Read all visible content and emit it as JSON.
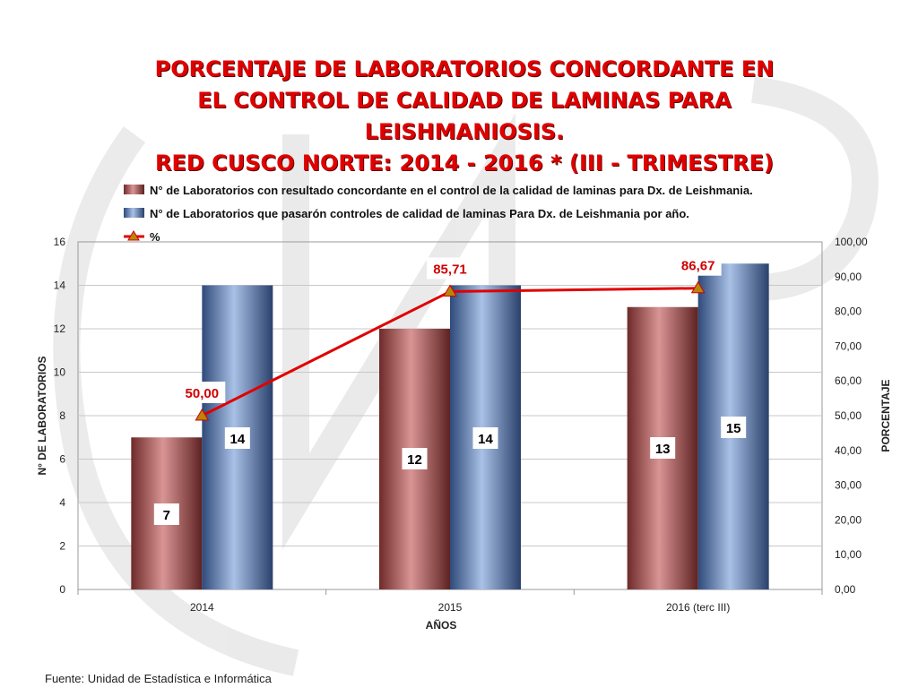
{
  "chart_data": {
    "type": "bar",
    "title_lines": [
      "PORCENTAJE DE LABORATORIOS CONCORDANTE EN",
      "EL CONTROL DE CALIDAD  DE LAMINAS PARA",
      "LEISHMANIOSIS.",
      "RED CUSCO NORTE: 2014 - 2016 * (III - TRIMESTRE)"
    ],
    "categories": [
      "2014",
      "2015",
      "2016 (terc III)"
    ],
    "series": [
      {
        "name": "N° de Laboratorios con resultado concordante en el control de la calidad de laminas para Dx. de Leishmania.",
        "type": "bar",
        "axis": "left",
        "values": [
          7,
          12,
          13
        ],
        "labels": [
          "7",
          "12",
          "13"
        ],
        "color": "#b55a5a"
      },
      {
        "name": "N° de Laboratorios que pasarón controles de calidad de laminas Para Dx. de Leishmania por año.",
        "type": "bar",
        "axis": "left",
        "values": [
          14,
          14,
          15
        ],
        "labels": [
          "14",
          "14",
          "15"
        ],
        "color": "#6f8cbf"
      },
      {
        "name": "%",
        "type": "line",
        "axis": "right",
        "values": [
          50.0,
          85.71,
          86.67
        ],
        "labels": [
          "50,00",
          "85,71",
          "86,67"
        ],
        "color": "#e00000"
      }
    ],
    "xlabel": "AÑOS",
    "ylabel": "N° DE LABORATORIOS",
    "y2label": "PORCENTAJE",
    "ylim": [
      0,
      16
    ],
    "y2lim": [
      0,
      100
    ],
    "yticks": [
      "0",
      "2",
      "4",
      "6",
      "8",
      "10",
      "12",
      "14",
      "16"
    ],
    "y2ticks": [
      "0,00",
      "10,00",
      "20,00",
      "30,00",
      "40,00",
      "50,00",
      "60,00",
      "70,00",
      "80,00",
      "90,00",
      "100,00"
    ],
    "grid": true,
    "legend_position": "top"
  },
  "footer": {
    "source": "Fuente: Unidad de Estadística e Informática"
  }
}
